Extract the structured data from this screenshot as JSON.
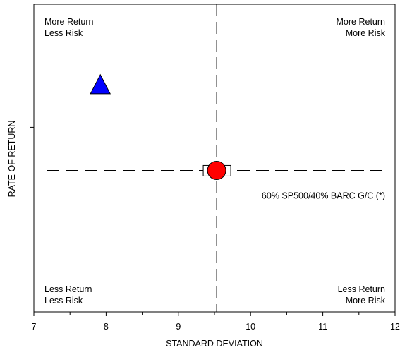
{
  "chart_data": {
    "type": "scatter",
    "title": "",
    "xlabel": "STANDARD DEVIATION",
    "ylabel": "RATE OF RETURN",
    "xlim": [
      7,
      12
    ],
    "x_ticks": [
      "7",
      "8",
      "9",
      "10",
      "11",
      "12"
    ],
    "ylim": [
      0,
      10
    ],
    "y_ticks": [],
    "grid": false,
    "reference_lines": {
      "x": 9.53,
      "y": 4.6
    },
    "quadrants": {
      "top_left": [
        "More Return",
        "Less Risk"
      ],
      "top_right": [
        "More Return",
        "More Risk"
      ],
      "bottom_left": [
        "Less Return",
        "Less Risk"
      ],
      "bottom_right": [
        "Less Return",
        "More Risk"
      ]
    },
    "series": [
      {
        "name": "",
        "marker": "triangle",
        "color": "#0000ff",
        "x": 7.92,
        "y": 7.4
      },
      {
        "name": "60% SP500/40% BARC G/C (*)",
        "marker": "circle",
        "color": "#ff0000",
        "x": 9.53,
        "y": 4.6,
        "benchmark_box": true
      }
    ]
  }
}
